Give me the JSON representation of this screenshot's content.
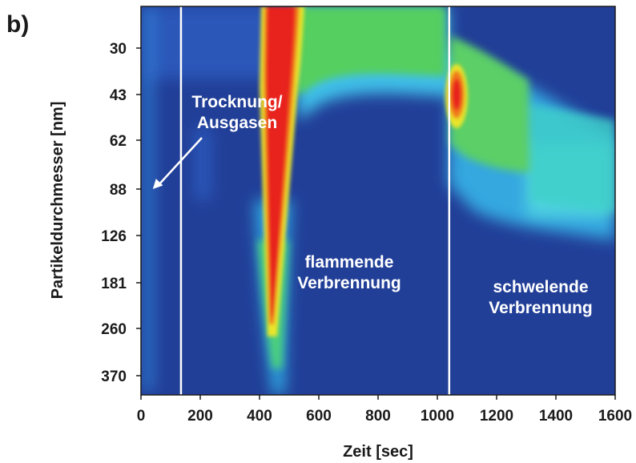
{
  "panel_label": "b)",
  "chart_data": {
    "type": "heatmap",
    "title": "",
    "xlabel": "Zeit [sec]",
    "ylabel": "Partikeldurchmesser [nm]",
    "xlim": [
      0,
      1600
    ],
    "x_ticks": [
      0,
      200,
      400,
      600,
      800,
      1000,
      1200,
      1400,
      1600
    ],
    "y_tick_labels": [
      "30",
      "43",
      "62",
      "88",
      "126",
      "181",
      "260",
      "370"
    ],
    "y_scale": "log",
    "y_direction": "small diameters at top, large at bottom",
    "colormap": [
      "#1f3a93",
      "#2e6fd6",
      "#3ec9e6",
      "#5bd27a",
      "#39c43a",
      "#e8e62a",
      "#f07a1a",
      "#e8241b"
    ],
    "phase_dividers_sec": [
      135,
      1040
    ],
    "divider_color": "#ffffff",
    "annotations": [
      {
        "lines": [
          "Trocknung/",
          "Ausgasen"
        ],
        "arrow_target": {
          "x": 40,
          "y": 88
        }
      },
      {
        "lines": [
          "flammende",
          "Verbrennung"
        ]
      },
      {
        "lines": [
          "schwelende",
          "Verbrennung"
        ]
      }
    ],
    "regions": [
      {
        "phase": "flammende Verbrennung",
        "x_range": [
          400,
          1040
        ],
        "peak_x": 450,
        "peak_intensity": "max (red)",
        "y_range": [
          "<30",
          "260"
        ]
      },
      {
        "phase": "flammende Verbrennung",
        "x_range": [
          520,
          1040
        ],
        "intensity": "medium (green)",
        "y_range": [
          "<30",
          "43"
        ]
      },
      {
        "phase": "schwelende Verbrennung",
        "x_range": [
          1040,
          1100
        ],
        "peak_x": 1060,
        "peak_intensity": "high (red/orange)",
        "y_range": [
          "43",
          "62"
        ]
      },
      {
        "phase": "schwelende Verbrennung",
        "x_range": [
          1040,
          1330
        ],
        "intensity": "medium (green)",
        "y_range": [
          "30",
          "88"
        ]
      },
      {
        "phase": "schwelende Verbrennung",
        "x_range": [
          1330,
          1600
        ],
        "intensity": "low (cyan)",
        "y_range": [
          "62",
          "126"
        ]
      }
    ],
    "grid": false,
    "legend": "none"
  }
}
